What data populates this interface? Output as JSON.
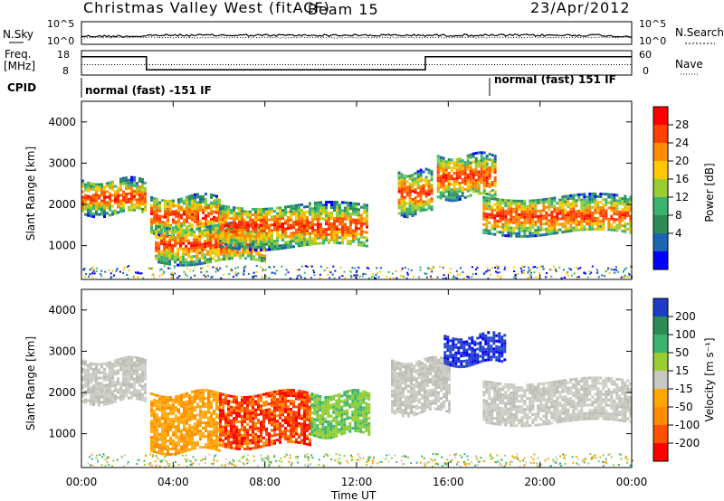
{
  "header": {
    "station": "Christmas Valley West (fitACF)",
    "beam": "Beam 15",
    "date": "23/Apr/2012"
  },
  "summary_panels": {
    "nsky_label": "N.Sky",
    "nsearch_label": "N.Search",
    "nsky_ticks": [
      "10^5",
      "10^0"
    ],
    "nsearch_ticks": [
      "10^5",
      "10^0"
    ],
    "freq_label_1": "Freq.",
    "freq_label_2": "[MHz]",
    "freq_ticks": [
      "18",
      "8"
    ],
    "nave_label": "Nave",
    "nave_ticks": [
      "60",
      "0"
    ],
    "cpid_label": "CPID",
    "cpid_left": "normal (fast) -151 IF",
    "cpid_right": "normal (fast) 151 IF"
  },
  "axes": {
    "ylabel": "Slant Range [km]",
    "xlabel": "Time UT",
    "y_ticks": [
      "1000",
      "2000",
      "3000",
      "4000"
    ],
    "x_ticks": [
      "00:00",
      "04:00",
      "08:00",
      "12:00",
      "16:00",
      "20:00",
      "00:00"
    ]
  },
  "colorbars": {
    "power": {
      "label": "Power [dB]",
      "ticks": [
        "28",
        "24",
        "20",
        "16",
        "12",
        "8",
        "4"
      ],
      "colors": [
        "#ff0000",
        "#ff4000",
        "#ff8c00",
        "#ffc800",
        "#9acd32",
        "#3cb371",
        "#2e8b57",
        "#1e64b4",
        "#0000ff"
      ]
    },
    "velocity": {
      "label": "Velocity [m s⁻¹]",
      "ticks": [
        "200",
        "100",
        "50",
        "15",
        "-15",
        "-50",
        "-100",
        "-200"
      ],
      "colors": [
        "#1e3cc8",
        "#2e8b57",
        "#3cb371",
        "#9acd32",
        "#c8c8c0",
        "#ffa500",
        "#ff8c00",
        "#ff5000",
        "#ff0000"
      ]
    }
  },
  "chart_data": [
    {
      "type": "line",
      "title": "N.Sky / N.Search",
      "x": [
        "00:00",
        "24:00"
      ],
      "series": [
        {
          "name": "N.Sky",
          "style": "solid",
          "level": "~10^1-10^2"
        },
        {
          "name": "N.Search",
          "style": "dotted",
          "level": "~10^1"
        }
      ]
    },
    {
      "type": "line",
      "x": [
        "00:00",
        "02:50",
        "02:50",
        "15:00",
        "15:00",
        "24:00"
      ],
      "series": [
        {
          "name": "Freq.",
          "values": [
            15.5,
            15.5,
            10.2,
            10.2,
            15.5,
            15.5
          ],
          "unit": "MHz"
        },
        {
          "name": "Nave",
          "values": [
            18,
            18,
            18,
            18,
            18,
            18
          ],
          "style": "dotted"
        }
      ],
      "ylim": [
        8,
        18
      ]
    },
    {
      "type": "heatmap",
      "title": "Power [dB]",
      "xlabel": "Time UT",
      "ylabel": "Slant Range [km]",
      "xlim": [
        0,
        24
      ],
      "ylim": [
        180,
        4500
      ],
      "bands": [
        {
          "t": [
            0.0,
            2.8
          ],
          "range": [
            1800,
            2600
          ],
          "power": "20-28"
        },
        {
          "t": [
            3.0,
            6.0
          ],
          "range": [
            1300,
            2200
          ],
          "power": "16-28"
        },
        {
          "t": [
            3.2,
            8.0
          ],
          "range": [
            600,
            1500
          ],
          "power": "20-28"
        },
        {
          "t": [
            6.0,
            12.5
          ],
          "range": [
            1000,
            2000
          ],
          "power": "16-28"
        },
        {
          "t": [
            13.8,
            15.3
          ],
          "range": [
            1800,
            2800
          ],
          "power": "20-28"
        },
        {
          "t": [
            15.5,
            18.0
          ],
          "range": [
            2200,
            3200
          ],
          "power": "16-28"
        },
        {
          "t": [
            17.5,
            24.0
          ],
          "range": [
            1300,
            2200
          ],
          "power": "16-28"
        }
      ]
    },
    {
      "type": "heatmap",
      "title": "Velocity [m s-1]",
      "xlabel": "Time UT",
      "ylabel": "Slant Range [km]",
      "xlim": [
        0,
        24
      ],
      "ylim": [
        180,
        4500
      ],
      "bands": [
        {
          "t": [
            0.0,
            2.8
          ],
          "range": [
            1800,
            2800
          ],
          "velocity": "-15 to 15"
        },
        {
          "t": [
            3.0,
            6.0
          ],
          "range": [
            600,
            2000
          ],
          "velocity": "-50 to -100"
        },
        {
          "t": [
            6.0,
            10.0
          ],
          "range": [
            700,
            2000
          ],
          "velocity": "-100 to -200"
        },
        {
          "t": [
            10.0,
            12.5
          ],
          "range": [
            1000,
            2000
          ],
          "velocity": "15 to 50"
        },
        {
          "t": [
            13.5,
            16.0
          ],
          "range": [
            1500,
            2800
          ],
          "velocity": "-15 to 15"
        },
        {
          "t": [
            15.8,
            18.5
          ],
          "range": [
            2700,
            3400
          ],
          "velocity": "100 to 200"
        },
        {
          "t": [
            17.5,
            24.0
          ],
          "range": [
            1300,
            2300
          ],
          "velocity": "-15 to 15"
        }
      ]
    }
  ]
}
